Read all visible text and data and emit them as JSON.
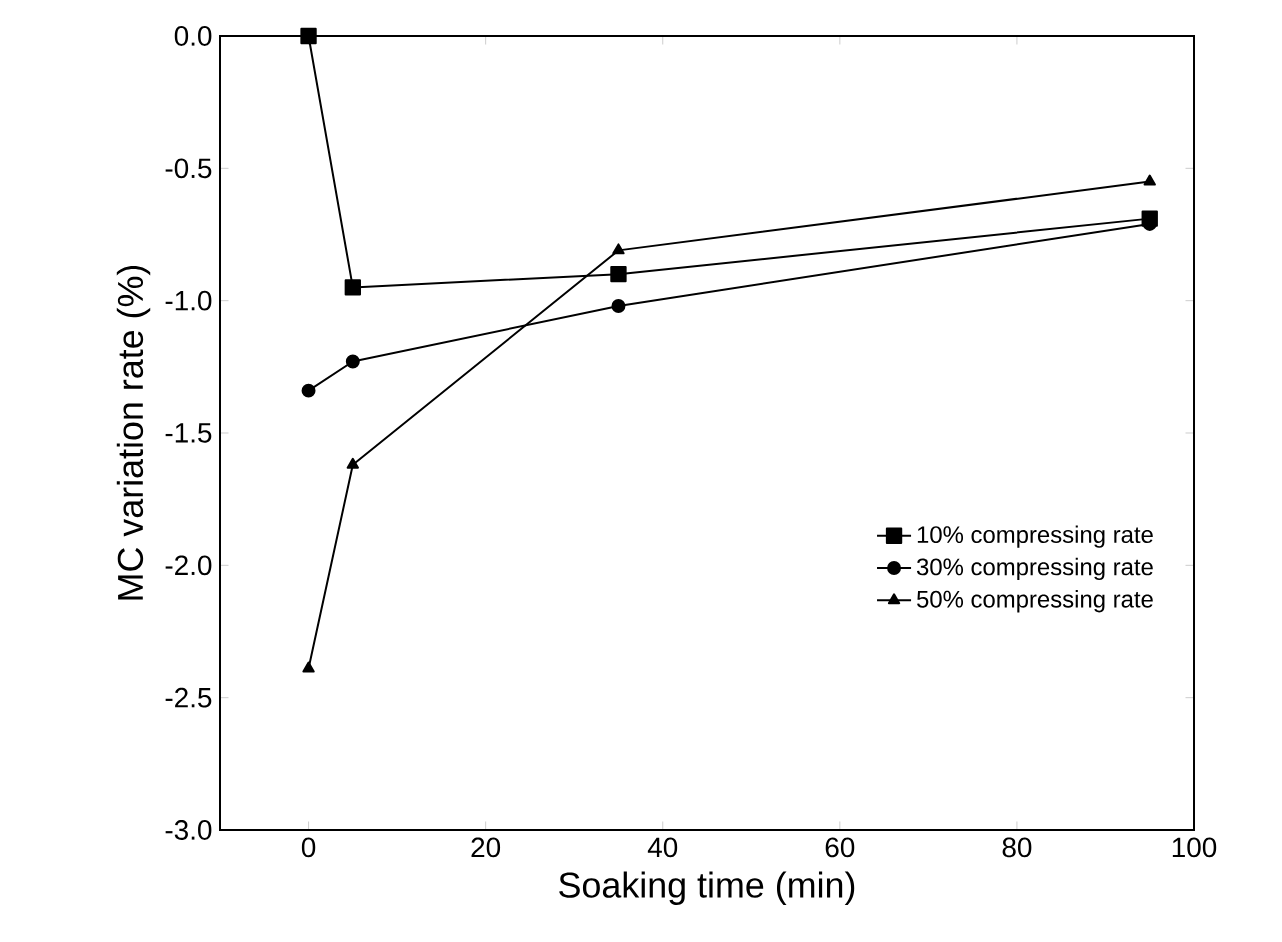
{
  "chart_data": {
    "type": "line",
    "xlabel": "Soaking time (min)",
    "ylabel": "MC variation rate (%)",
    "xlim": [
      -10,
      100
    ],
    "ylim": [
      -3.0,
      0.0
    ],
    "xticks": [
      0,
      20,
      40,
      60,
      80,
      100
    ],
    "yticks": [
      {
        "value": -3.0,
        "label": "-3.0"
      },
      {
        "value": -2.5,
        "label": "-2.5"
      },
      {
        "value": -2.0,
        "label": "-2.0"
      },
      {
        "value": -1.5,
        "label": "-1.5"
      },
      {
        "value": -1.0,
        "label": "-1.0"
      },
      {
        "value": -0.5,
        "label": "-0.5"
      },
      {
        "value": 0.0,
        "label": "0.0"
      }
    ],
    "x": [
      0,
      5,
      35,
      95
    ],
    "series": [
      {
        "name": "10% compressing rate",
        "color": "#000000",
        "marker": "square",
        "values": [
          0.0,
          -0.95,
          -0.9,
          -0.69
        ]
      },
      {
        "name": "30%  compressing rate",
        "color": "#000000",
        "marker": "circle",
        "values": [
          -1.34,
          -1.23,
          -1.02,
          -0.71
        ]
      },
      {
        "name": "50% compressing rate",
        "color": "#000000",
        "marker": "triangle",
        "values": [
          -2.39,
          -1.62,
          -0.81,
          -0.55
        ]
      }
    ],
    "legend": "right",
    "line_style": "solid"
  }
}
